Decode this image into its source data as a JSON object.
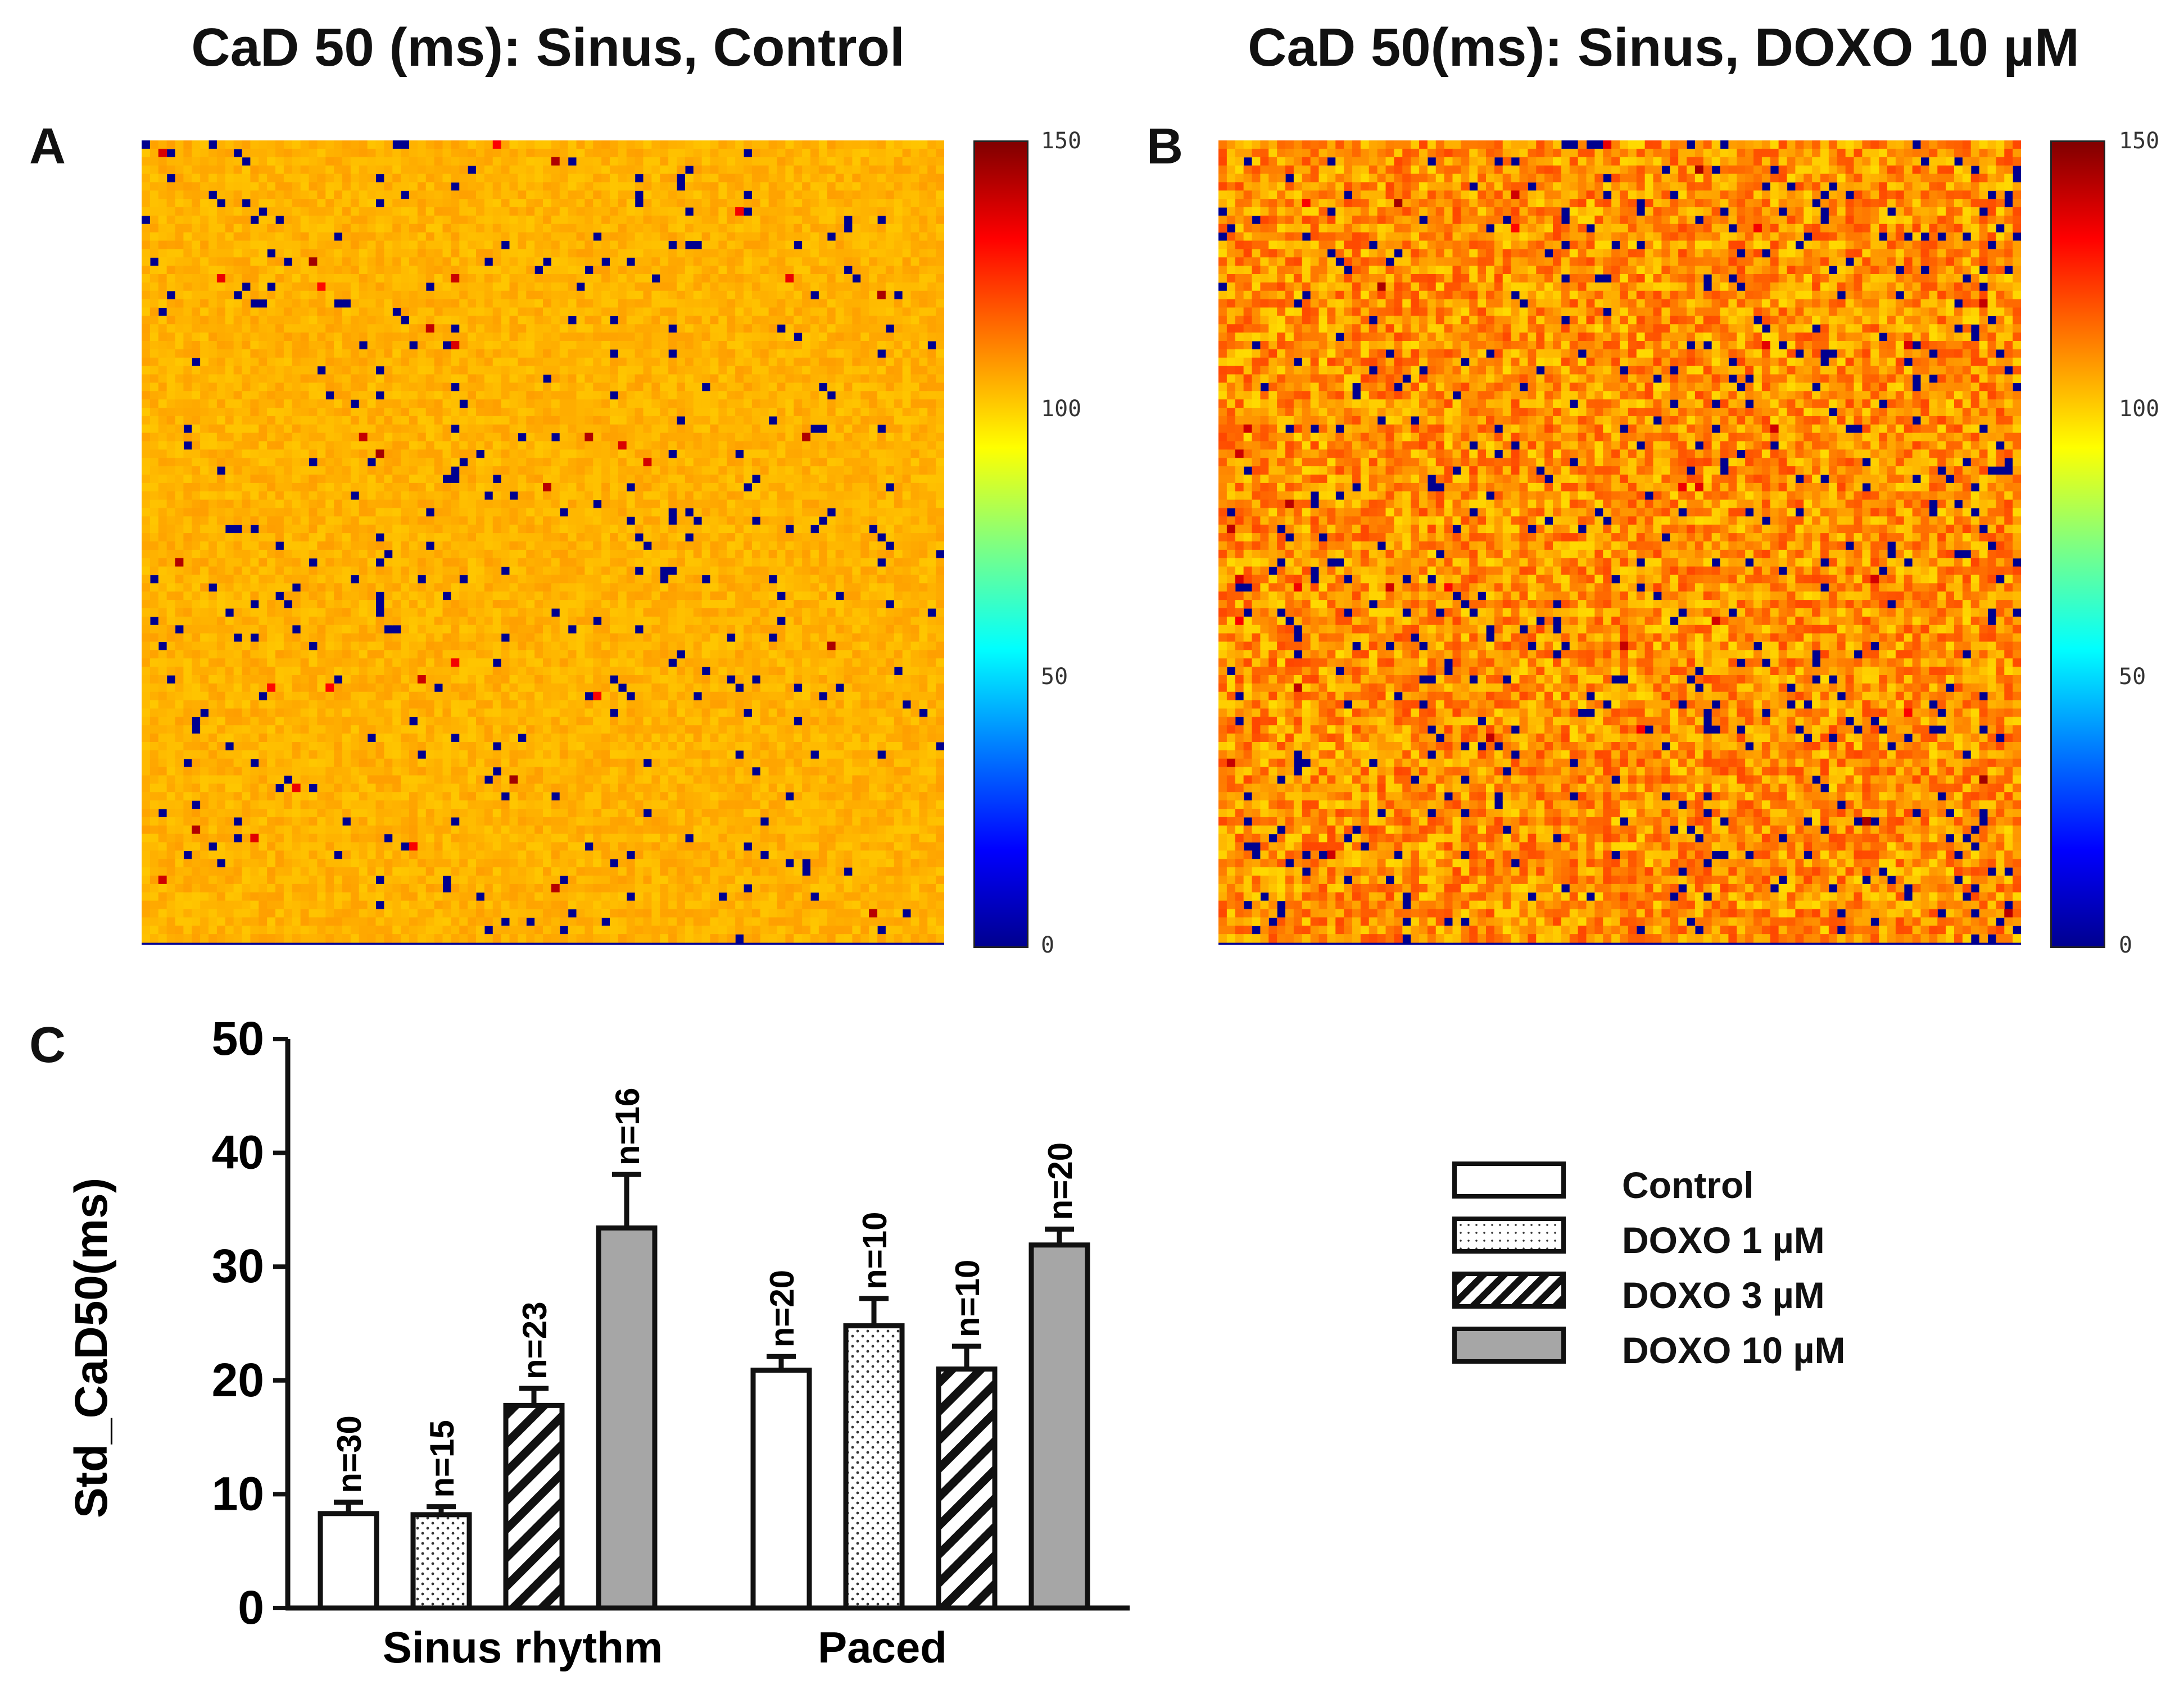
{
  "panels": {
    "A": {
      "label": "A",
      "title": "CaD 50 (ms): Sinus, Control",
      "colorbar_ticks": [
        "150",
        "100",
        "50",
        "0"
      ]
    },
    "B": {
      "label": "B",
      "title": "CaD 50(ms): Sinus, DOXO 10 µM",
      "colorbar_ticks": [
        "150",
        "100",
        "50",
        "0"
      ]
    },
    "C": {
      "label": "C"
    }
  },
  "colors": {
    "background_map": "#00008f",
    "control_fill": "#ffffff",
    "doxo10_fill": "#a6a6a6",
    "bar_outline": "#111111"
  },
  "chart_data": [
    {
      "type": "heatmap",
      "title": "CaD 50 (ms): Sinus, Control",
      "colorbar": {
        "min": 0,
        "max": 150,
        "ticks": [
          0,
          50,
          100,
          150
        ],
        "colormap": "jet"
      },
      "dominant_value_ms": 105
    },
    {
      "type": "heatmap",
      "title": "CaD 50(ms): Sinus, DOXO 10 µM",
      "colorbar": {
        "min": 0,
        "max": 150,
        "ticks": [
          0,
          50,
          100,
          150
        ],
        "colormap": "jet"
      },
      "dominant_value_ms": 110
    },
    {
      "type": "bar",
      "ylabel": "Std_CaD50(ms)",
      "ylim": [
        0,
        50
      ],
      "yticks": [
        "0",
        "10",
        "20",
        "30",
        "40",
        "50"
      ],
      "categories": [
        "Sinus rhythm",
        "Paced"
      ],
      "legend_position": "right",
      "series": [
        {
          "name": "Control",
          "pattern": "none",
          "values": [
            8.3,
            20.9
          ],
          "errors": [
            1.0,
            1.2
          ],
          "n": [
            "n=30",
            "n=20"
          ]
        },
        {
          "name": "DOXO 1 µM",
          "pattern": "dots",
          "values": [
            8.2,
            24.8
          ],
          "errors": [
            0.7,
            2.4
          ],
          "n": [
            "n=15",
            "n=10"
          ]
        },
        {
          "name": "DOXO 3 µM",
          "pattern": "hatch",
          "values": [
            17.8,
            21.0
          ],
          "errors": [
            1.5,
            2.0
          ],
          "n": [
            "n=23",
            "n=10"
          ]
        },
        {
          "name": "DOXO 10 µM",
          "pattern": "solid-gray",
          "values": [
            33.4,
            31.9
          ],
          "errors": [
            4.7,
            1.4
          ],
          "n": [
            "n=16",
            "n=20"
          ]
        }
      ]
    }
  ]
}
